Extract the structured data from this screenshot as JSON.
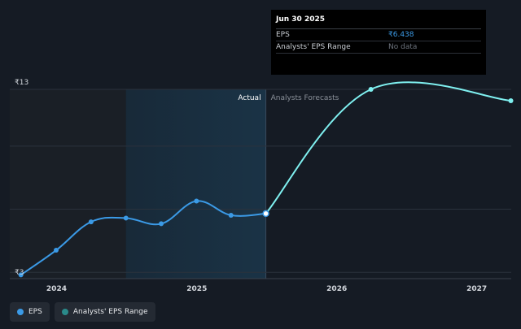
{
  "tooltip": {
    "date": "Jun 30 2025",
    "rows": [
      {
        "label": "EPS",
        "value": "₹6.438"
      },
      {
        "label": "Analysts' EPS Range",
        "value": "No data"
      }
    ]
  },
  "legend": [
    {
      "label": "EPS",
      "color": "#3b9ae6"
    },
    {
      "label": "Analysts' EPS Range",
      "color": "#2a8a8a"
    }
  ],
  "colors": {
    "actual": "#3b9ae6",
    "forecast": "#7ff0f0",
    "highlight_band": "#1a3346",
    "past_band": "#1a1f26"
  },
  "chart_data": {
    "type": "line",
    "y_tick_labels": [
      "₹13",
      "₹3"
    ],
    "ylim": [
      3,
      13
    ],
    "x_tick_labels": [
      "2024",
      "2025",
      "2026",
      "2027"
    ],
    "x_ticks": [
      "2024-01-01",
      "2025-01-01",
      "2026-01-01",
      "2027-01-01"
    ],
    "xlim": [
      "2023-09-01",
      "2027-04-01"
    ],
    "section_labels": {
      "actual": "Actual",
      "forecast": "Analysts Forecasts"
    },
    "divider_date": "2025-06-30",
    "series": [
      {
        "name": "EPS",
        "role": "actual",
        "points": [
          {
            "x": "2023-09-30",
            "y": 3.2
          },
          {
            "x": "2023-12-31",
            "y": 4.5
          },
          {
            "x": "2024-03-31",
            "y": 6.0
          },
          {
            "x": "2024-06-30",
            "y": 6.2
          },
          {
            "x": "2024-09-30",
            "y": 5.9
          },
          {
            "x": "2024-12-31",
            "y": 7.1
          },
          {
            "x": "2025-03-31",
            "y": 6.35
          },
          {
            "x": "2025-06-30",
            "y": 6.438
          }
        ]
      },
      {
        "name": "",
        "role": "forecast",
        "points": [
          {
            "x": "2025-06-30",
            "y": 6.438
          },
          {
            "x": "2026-03-31",
            "y": 13.0
          },
          {
            "x": "2027-03-31",
            "y": 12.4
          }
        ]
      }
    ]
  }
}
